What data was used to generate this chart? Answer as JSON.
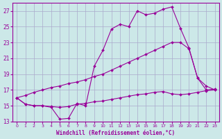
{
  "background_color": "#cce8e8",
  "grid_color": "#aaaacc",
  "line_color": "#990099",
  "xlabel": "Windchill (Refroidissement éolien,°C)",
  "xlim": [
    -0.5,
    23.5
  ],
  "ylim": [
    13,
    28
  ],
  "yticks": [
    13,
    15,
    17,
    19,
    21,
    23,
    25,
    27
  ],
  "xticks": [
    0,
    1,
    2,
    3,
    4,
    5,
    6,
    7,
    8,
    9,
    10,
    11,
    12,
    13,
    14,
    15,
    16,
    17,
    18,
    19,
    20,
    21,
    22,
    23
  ],
  "figsize": [
    3.2,
    2.0
  ],
  "dpi": 100,
  "series": [
    {
      "x": [
        0,
        1,
        2,
        3,
        4,
        5,
        6,
        7,
        8,
        9,
        10,
        11,
        12,
        13,
        14,
        15,
        16,
        17,
        18,
        19,
        20,
        21,
        22,
        23
      ],
      "y": [
        16.0,
        15.2,
        15.0,
        15.0,
        14.8,
        13.3,
        13.4,
        15.3,
        15.0,
        20.0,
        22.0,
        24.7,
        25.3,
        25.0,
        27.0,
        26.5,
        26.7,
        27.2,
        27.5,
        24.8,
        22.3,
        18.5,
        17.0,
        17.1
      ]
    },
    {
      "x": [
        0,
        1,
        2,
        3,
        4,
        5,
        6,
        7,
        8,
        9,
        10,
        11,
        12,
        13,
        14,
        15,
        16,
        17,
        18,
        19,
        20,
        21,
        22,
        23
      ],
      "y": [
        16.0,
        16.3,
        16.7,
        17.0,
        17.3,
        17.5,
        17.8,
        18.0,
        18.3,
        18.7,
        19.0,
        19.5,
        20.0,
        20.5,
        21.0,
        21.5,
        22.0,
        22.5,
        23.0,
        23.0,
        22.2,
        18.5,
        17.5,
        17.0
      ]
    },
    {
      "x": [
        0,
        1,
        2,
        3,
        4,
        5,
        6,
        7,
        8,
        9,
        10,
        11,
        12,
        13,
        14,
        15,
        16,
        17,
        18,
        19,
        20,
        21,
        22,
        23
      ],
      "y": [
        16.0,
        15.2,
        15.0,
        15.0,
        14.9,
        14.8,
        14.9,
        15.2,
        15.3,
        15.5,
        15.6,
        15.8,
        16.0,
        16.2,
        16.4,
        16.5,
        16.7,
        16.8,
        16.5,
        16.4,
        16.5,
        16.7,
        16.9,
        17.0
      ]
    }
  ]
}
